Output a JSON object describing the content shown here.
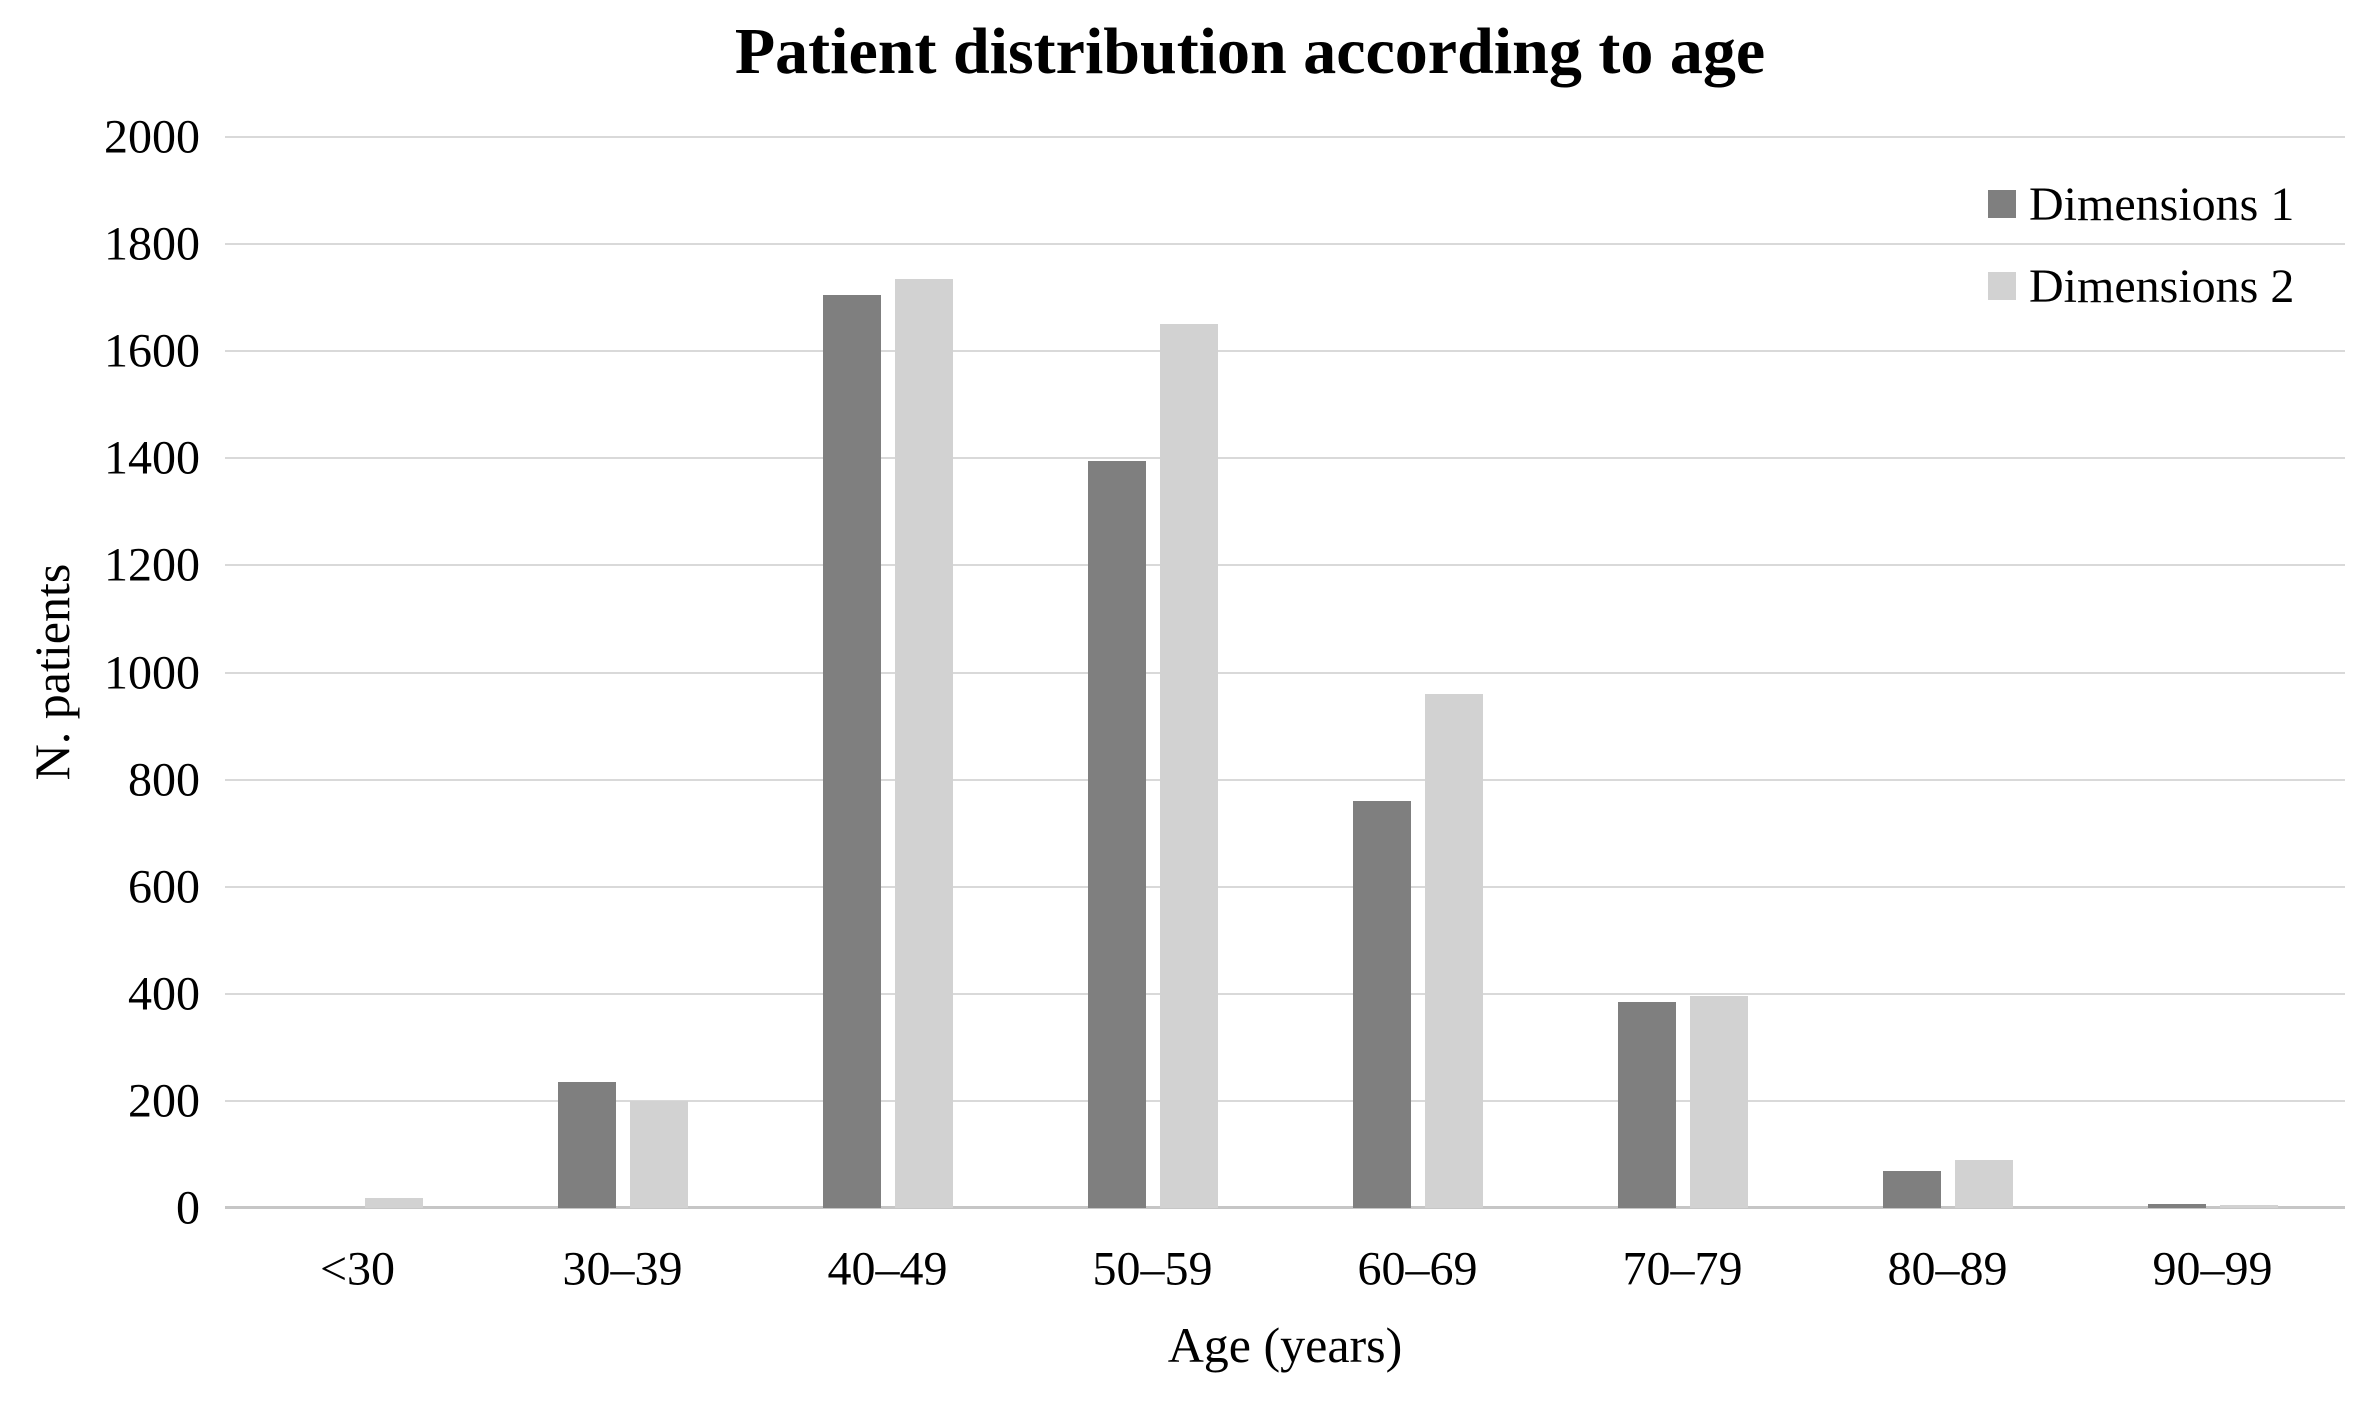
{
  "chart_data": {
    "type": "bar",
    "title": "Patient distribution according to age",
    "xlabel": "Age (years)",
    "ylabel": "N. patients",
    "categories": [
      "<30",
      "30–39",
      "40–49",
      "50–59",
      "60–69",
      "70–79",
      "80–89",
      "90–99"
    ],
    "series": [
      {
        "name": "Dimensions 1",
        "color": "#7f7f7f",
        "values": [
          0,
          235,
          1705,
          1395,
          760,
          385,
          70,
          8
        ]
      },
      {
        "name": "Dimensions 2",
        "color": "#d2d2d2",
        "values": [
          18,
          200,
          1735,
          1650,
          960,
          395,
          90,
          5
        ]
      }
    ],
    "ylim": [
      0,
      2000
    ],
    "ytick_step": 200,
    "grid": "horizontal-only",
    "legend_position": "top-right",
    "colors": {
      "gridline": "#d9d9d9",
      "axis_line": "#c6c6c6",
      "text": "#000000",
      "background": "#ffffff"
    }
  }
}
